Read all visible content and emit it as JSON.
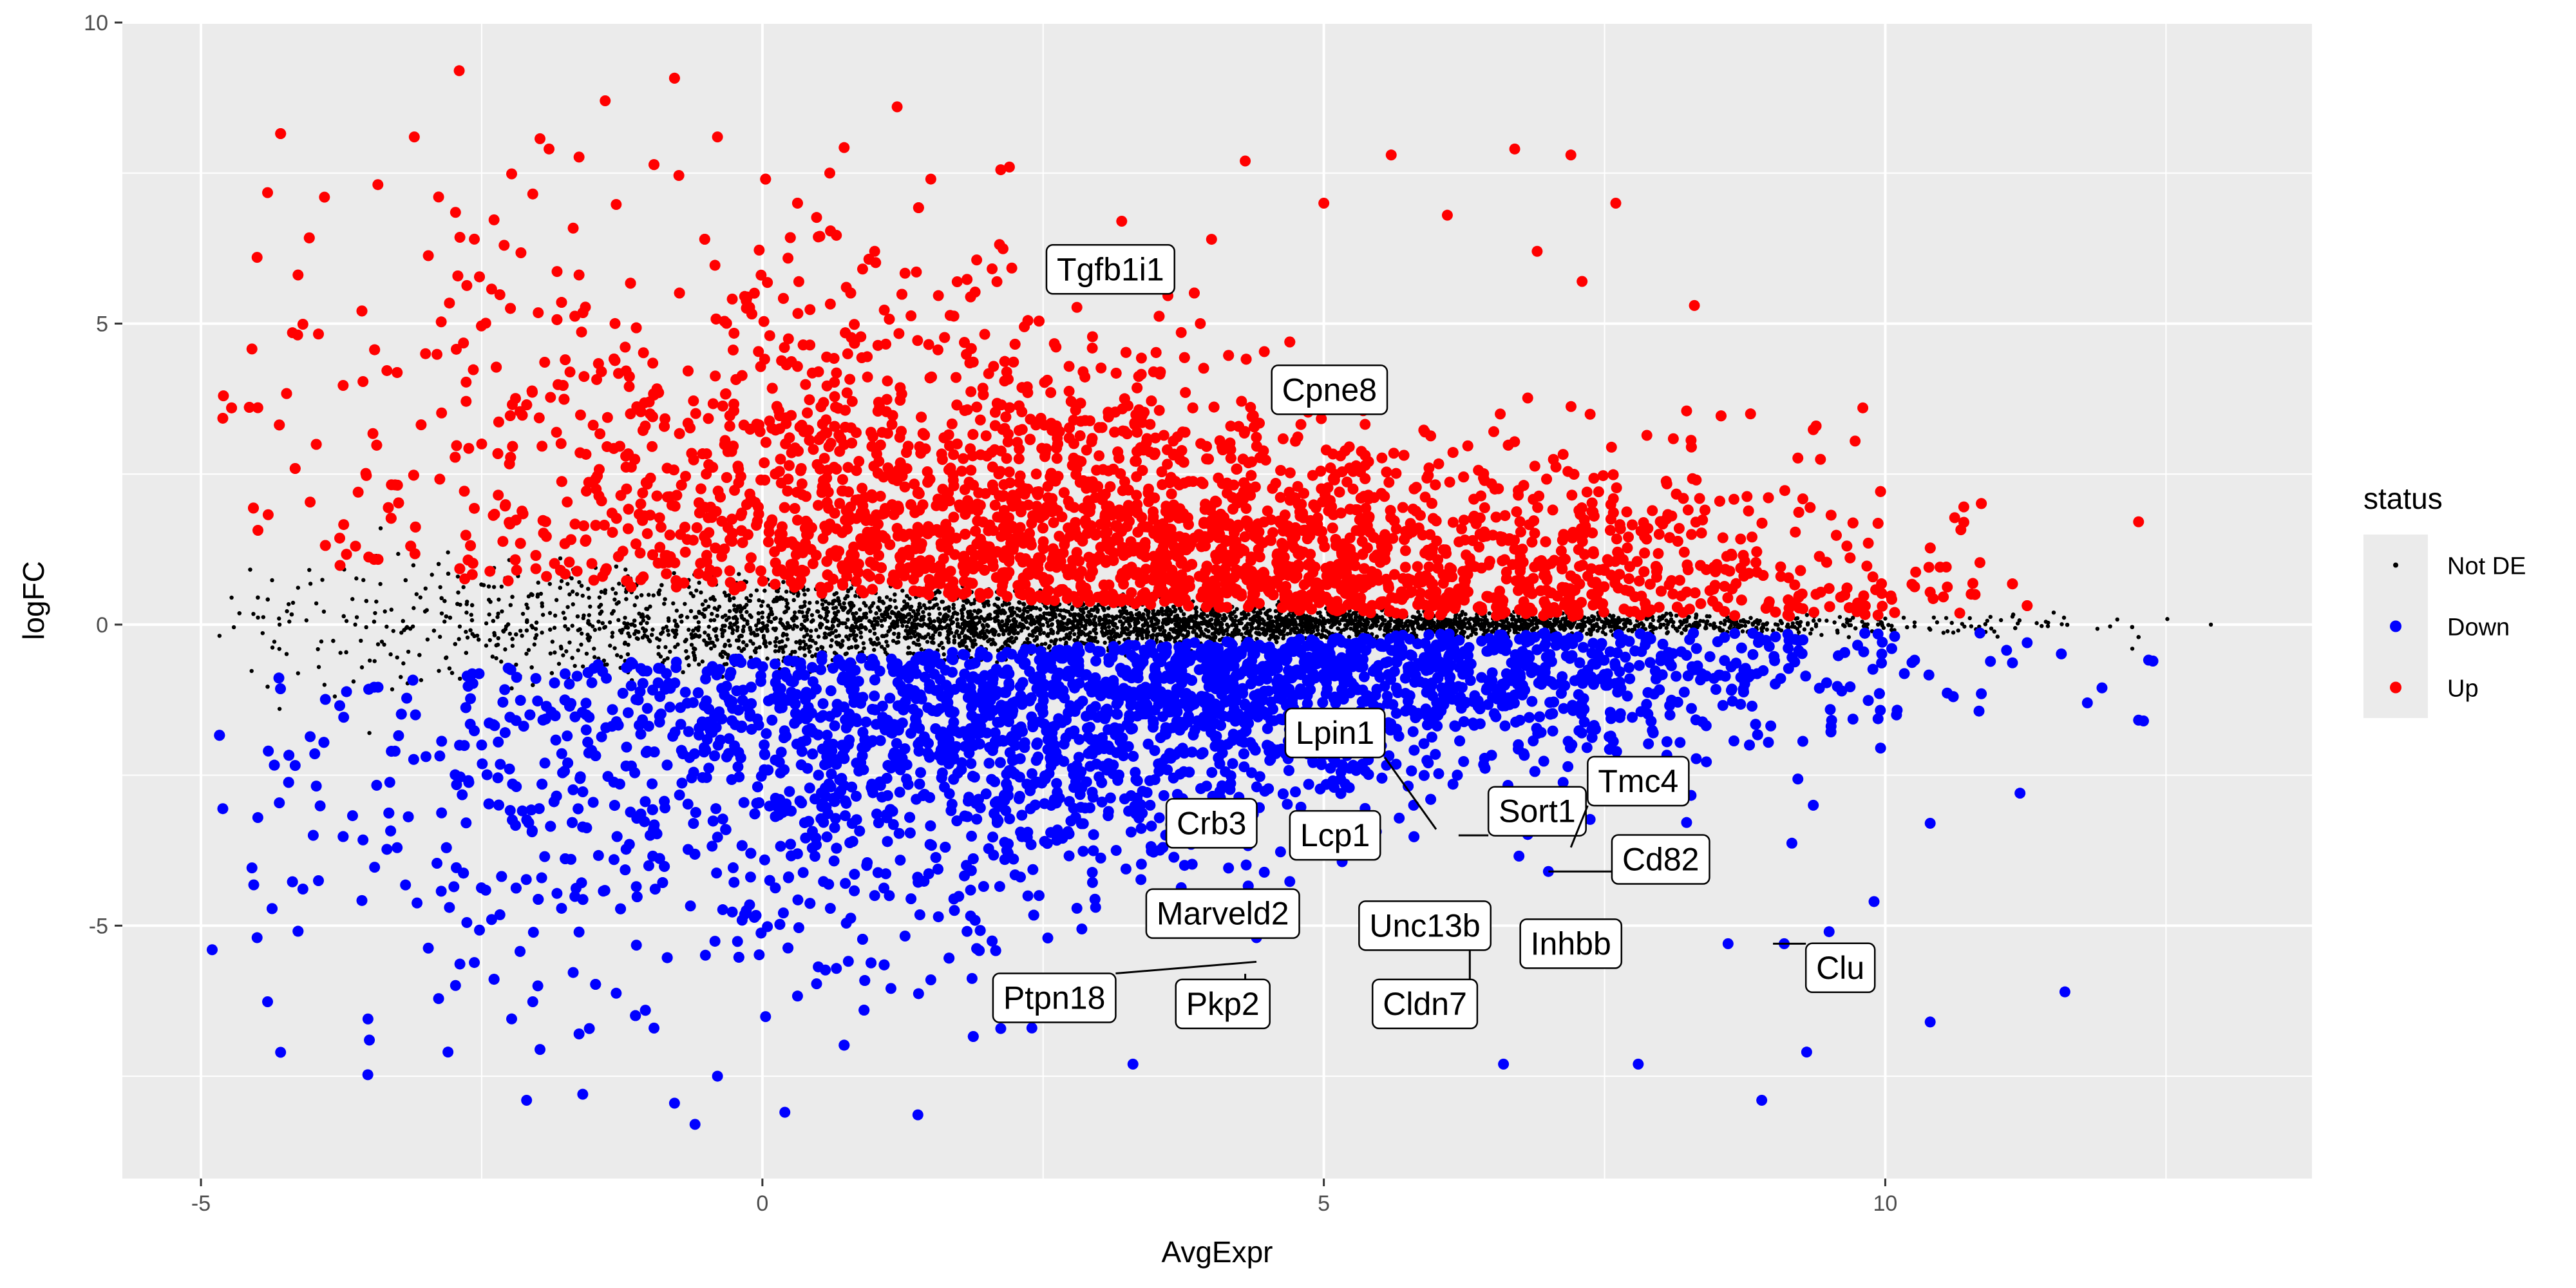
{
  "chart_data": {
    "type": "scatter",
    "title": "",
    "xlabel": "AvgExpr",
    "ylabel": "logFC",
    "xlim": [
      -5.7,
      13.8
    ],
    "ylim": [
      -9.2,
      10.0
    ],
    "x_ticks": [
      -5,
      0,
      5,
      10
    ],
    "y_ticks": [
      -5,
      0,
      5,
      10
    ],
    "tick_labels_x": [
      "-5",
      "0",
      "5",
      "10"
    ],
    "tick_labels_y": [
      "-5",
      "0",
      "5",
      "10"
    ],
    "grid": true,
    "background": "#ebebeb",
    "legend": {
      "title": "status",
      "position": "right",
      "entries": [
        {
          "label": "Not DE",
          "color": "#000000",
          "size": "small"
        },
        {
          "label": "Down",
          "color": "#0000ff",
          "size": "large"
        },
        {
          "label": "Up",
          "color": "#ff0000",
          "size": "large"
        }
      ]
    },
    "series": [
      {
        "name": "Up",
        "color": "#ff0000",
        "sample_points": [
          [
            -2.7,
            9.2
          ],
          [
            -1.4,
            8.7
          ],
          [
            1.2,
            8.6
          ],
          [
            -3.1,
            8.1
          ],
          [
            -0.4,
            8.1
          ],
          [
            -1.9,
            7.9
          ],
          [
            6.7,
            7.9
          ],
          [
            7.2,
            7.8
          ],
          [
            5.6,
            7.8
          ],
          [
            4.3,
            7.7
          ],
          [
            -3.9,
            7.1
          ],
          [
            2.2,
            7.6
          ],
          [
            0.6,
            7.5
          ],
          [
            1.5,
            7.4
          ],
          [
            7.6,
            7.0
          ],
          [
            5.0,
            7.0
          ],
          [
            6.1,
            6.8
          ],
          [
            -4.5,
            6.1
          ],
          [
            3.2,
            6.7
          ],
          [
            4.0,
            6.4
          ],
          [
            6.9,
            6.2
          ],
          [
            -2.3,
            6.3
          ],
          [
            1.0,
            6.2
          ],
          [
            7.3,
            5.7
          ],
          [
            8.3,
            5.3
          ],
          [
            -4.8,
            3.8
          ],
          [
            9.8,
            3.6
          ],
          [
            8.8,
            3.5
          ],
          [
            10.7,
            1.7
          ],
          [
            10.8,
            0.5
          ],
          [
            -3.6,
            2.2
          ],
          [
            -1.0,
            3.5
          ],
          [
            0.5,
            4.2
          ],
          [
            2.0,
            2.8
          ],
          [
            3.5,
            3.1
          ],
          [
            4.8,
            2.0
          ],
          [
            5.5,
            1.4
          ],
          [
            6.3,
            1.1
          ],
          [
            7.5,
            0.9
          ],
          [
            8.5,
            1.0
          ],
          [
            9.5,
            0.6
          ],
          [
            2.8,
            1.2
          ],
          [
            1.2,
            1.6
          ],
          [
            -0.5,
            2.5
          ],
          [
            -2.5,
            3.0
          ],
          [
            -3.0,
            4.5
          ],
          [
            3.9,
            5.0
          ],
          [
            5.9,
            3.2
          ]
        ]
      },
      {
        "name": "Down",
        "color": "#0000ff",
        "sample_points": [
          [
            -4.9,
            -5.4
          ],
          [
            -4.5,
            -5.2
          ],
          [
            -4.4,
            -2.1
          ],
          [
            -2.1,
            -7.9
          ],
          [
            -1.6,
            -7.8
          ],
          [
            -0.6,
            -8.3
          ],
          [
            0.2,
            -8.1
          ],
          [
            -0.4,
            -7.5
          ],
          [
            3.3,
            -7.3
          ],
          [
            6.6,
            -7.3
          ],
          [
            7.8,
            -7.3
          ],
          [
            8.9,
            -7.9
          ],
          [
            9.3,
            -7.1
          ],
          [
            10.4,
            -6.6
          ],
          [
            11.6,
            -6.1
          ],
          [
            9.9,
            -4.6
          ],
          [
            10.4,
            -3.3
          ],
          [
            11.2,
            -2.8
          ],
          [
            11.8,
            -1.3
          ],
          [
            12.3,
            -1.6
          ],
          [
            8.6,
            -5.3
          ],
          [
            9.1,
            -5.3
          ],
          [
            9.5,
            -5.1
          ],
          [
            4.4,
            -5.2
          ],
          [
            2.4,
            -6.7
          ],
          [
            -2.8,
            -7.1
          ],
          [
            -3.5,
            -6.9
          ],
          [
            1.5,
            -5.9
          ],
          [
            -1.0,
            -3.5
          ],
          [
            0.5,
            -2.5
          ],
          [
            2.0,
            -1.8
          ],
          [
            3.5,
            -1.2
          ],
          [
            5.0,
            -0.9
          ],
          [
            6.5,
            -0.8
          ],
          [
            8.0,
            -0.6
          ],
          [
            -2.5,
            -2.0
          ],
          [
            -4.0,
            -3.5
          ],
          [
            5.8,
            -3.0
          ],
          [
            7.0,
            -4.1
          ],
          [
            1.0,
            -4.5
          ],
          [
            -2.0,
            -6.0
          ],
          [
            10.1,
            -1.5
          ]
        ]
      },
      {
        "name": "Not DE",
        "color": "#000000",
        "sample_points": [
          [
            -4.3,
            -1.4
          ],
          [
            -3.9,
            -1.0
          ],
          [
            -3.4,
            1.6
          ],
          [
            -3.0,
            0.6
          ],
          [
            -2.5,
            -0.8
          ],
          [
            -2.0,
            0.5
          ],
          [
            -1.5,
            -0.4
          ],
          [
            -1.0,
            0.3
          ],
          [
            -0.5,
            -0.3
          ],
          [
            0.0,
            0.2
          ],
          [
            0.5,
            -0.2
          ],
          [
            1.0,
            0.1
          ],
          [
            2.0,
            -0.1
          ],
          [
            3.0,
            0.1
          ],
          [
            4.0,
            0.0
          ],
          [
            5.0,
            0.05
          ],
          [
            6.0,
            -0.05
          ],
          [
            7.0,
            0.0
          ],
          [
            8.0,
            0.0
          ],
          [
            9.0,
            -0.1
          ],
          [
            10.0,
            0.1
          ],
          [
            11.0,
            -0.2
          ],
          [
            11.5,
            0.2
          ],
          [
            12.2,
            -0.4
          ],
          [
            12.9,
            0.0
          ],
          [
            -4.3,
            0.0
          ],
          [
            -3.5,
            -1.8
          ],
          [
            -2.8,
            1.2
          ],
          [
            -1.8,
            1.1
          ],
          [
            9.8,
            -0.4
          ]
        ]
      }
    ],
    "annotations": [
      {
        "label": "Tgfb1i1",
        "point": [
          3.0,
          5.9
        ],
        "label_at": [
          3.1,
          5.9
        ]
      },
      {
        "label": "Cpne8",
        "point": [
          5.0,
          3.8
        ],
        "label_at": [
          5.05,
          3.9
        ]
      },
      {
        "label": "Lpin1",
        "point": [
          6.0,
          -3.4
        ],
        "label_at": [
          5.1,
          -1.8
        ]
      },
      {
        "label": "Sort1",
        "point": [
          6.2,
          -3.5
        ],
        "label_at": [
          6.9,
          -3.1
        ]
      },
      {
        "label": "Tmc4",
        "point": [
          7.2,
          -3.7
        ],
        "label_at": [
          7.8,
          -2.6
        ]
      },
      {
        "label": "Crb3",
        "point": [
          3.9,
          -3.3
        ],
        "label_at": [
          4.0,
          -3.3
        ]
      },
      {
        "label": "Lcp1",
        "point": [
          5.1,
          -3.5
        ],
        "label_at": [
          5.1,
          -3.5
        ]
      },
      {
        "label": "Cd82",
        "point": [
          7.0,
          -4.1
        ],
        "label_at": [
          8.0,
          -3.9
        ]
      },
      {
        "label": "Marveld2",
        "point": [
          4.1,
          -4.8
        ],
        "label_at": [
          4.1,
          -4.8
        ]
      },
      {
        "label": "Unc13b",
        "point": [
          5.8,
          -5.0
        ],
        "label_at": [
          5.9,
          -5.0
        ]
      },
      {
        "label": "Inhbb",
        "point": [
          7.0,
          -5.3
        ],
        "label_at": [
          7.2,
          -5.3
        ]
      },
      {
        "label": "Clu",
        "point": [
          9.0,
          -5.3
        ],
        "label_at": [
          9.6,
          -5.7
        ]
      },
      {
        "label": "Ptpn18",
        "point": [
          4.4,
          -5.6
        ],
        "label_at": [
          2.6,
          -6.2
        ]
      },
      {
        "label": "Pkp2",
        "point": [
          4.3,
          -5.8
        ],
        "label_at": [
          4.1,
          -6.3
        ]
      },
      {
        "label": "Cldn7",
        "point": [
          6.3,
          -5.4
        ],
        "label_at": [
          5.9,
          -6.3
        ]
      }
    ]
  }
}
